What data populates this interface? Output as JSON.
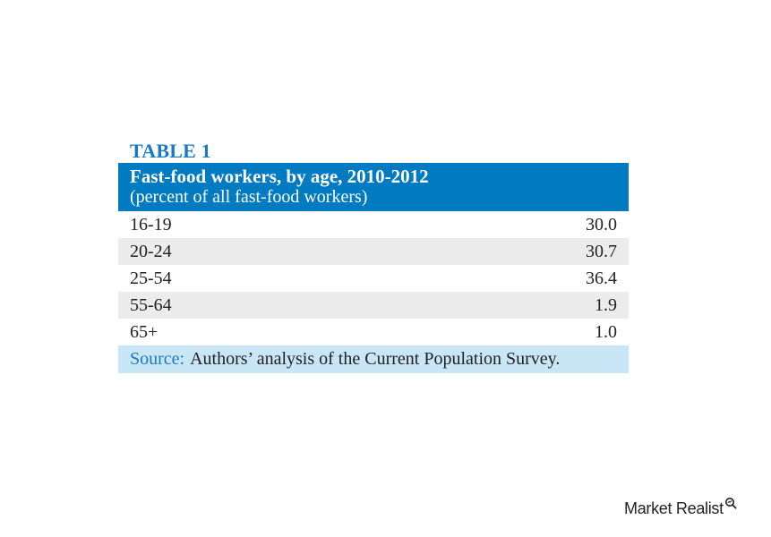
{
  "colors": {
    "header_bg": "#007ac1",
    "table_label": "#1a7ac0",
    "shaded_row": "#ececec",
    "source_bg": "#c9e6f7",
    "source_label": "#1a7ac0"
  },
  "table_label": "TABLE 1",
  "header": {
    "title": "Fast-food workers, by age, 2010-2012",
    "subtitle": "(percent of all fast-food workers)"
  },
  "chart_data": {
    "type": "table",
    "title": "Fast-food workers, by age, 2010-2012",
    "subtitle": "(percent of all fast-food workers)",
    "rows": [
      {
        "age": "16-19",
        "value": "30.0"
      },
      {
        "age": "20-24",
        "value": "30.7"
      },
      {
        "age": "25-54",
        "value": "36.4"
      },
      {
        "age": "55-64",
        "value": "1.9"
      },
      {
        "age": "65+",
        "value": "1.0"
      }
    ]
  },
  "source": {
    "label": "Source:",
    "text": "Authors’ analysis of the Current Population Survey."
  },
  "logo": {
    "text": "Market Realist",
    "icon": "magnifier-icon"
  }
}
